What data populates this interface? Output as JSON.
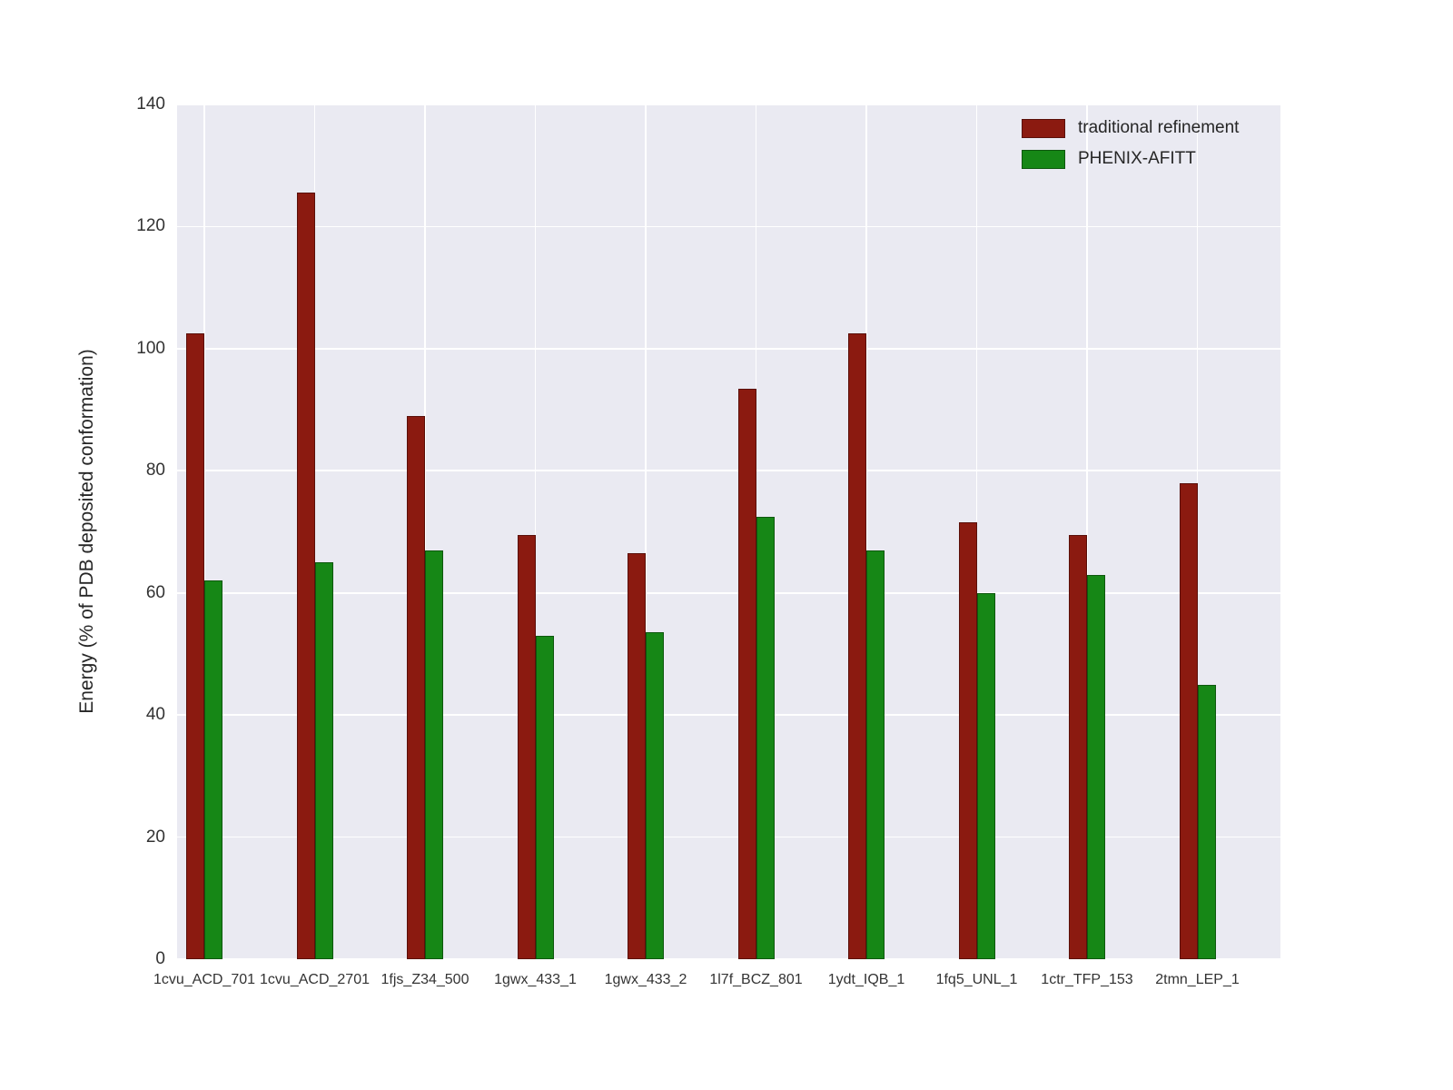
{
  "figure": {
    "background": "#ffffff",
    "plot_background": "#eaeaf2",
    "grid_color": "#ffffff"
  },
  "chart_data": {
    "type": "bar",
    "categories": [
      "1cvu_ACD_701",
      "1cvu_ACD_2701",
      "1fjs_Z34_500",
      "1gwx_433_1",
      "1gwx_433_2",
      "1l7f_BCZ_801",
      "1ydt_IQB_1",
      "1fq5_UNL_1",
      "1ctr_TFP_153",
      "2tmn_LEP_1"
    ],
    "series": [
      {
        "name": "traditional refinement",
        "color": "#8b1a10",
        "values": [
          102.5,
          125.5,
          89,
          69.5,
          66.5,
          93.5,
          102.5,
          71.5,
          69.5,
          78
        ]
      },
      {
        "name": "PHENIX-AFITT",
        "color": "#168716",
        "values": [
          62,
          65,
          67,
          53,
          53.5,
          72.5,
          67,
          60,
          63,
          45
        ]
      }
    ],
    "title": "",
    "xlabel": "",
    "ylabel": "Energy (% of PDB deposited conformation)",
    "ylim": [
      0,
      140
    ],
    "yticks": [
      0,
      20,
      40,
      60,
      80,
      100,
      120,
      140
    ],
    "grid": true,
    "legend_position": "upper right"
  }
}
